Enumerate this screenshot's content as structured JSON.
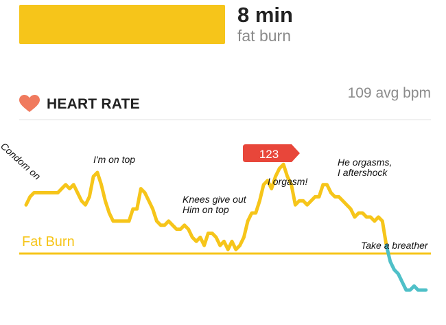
{
  "zone_summary": {
    "minutes": "8 min",
    "zone": "fat burn",
    "bar_color": "#f6c51a"
  },
  "heart_rate": {
    "icon": "heart-icon",
    "title": "HEART RATE",
    "average": "109 avg bpm",
    "peak_value": "123",
    "zone_line_label": "Fat Burn"
  },
  "colors": {
    "fat_burn": "#f6c51a",
    "below_zone": "#4fc0c8",
    "peak_badge": "#e8463a",
    "heart": "#f07a5e"
  },
  "annotations": [
    "Condom on",
    "I'm on top",
    "Knees give out",
    "Him on top",
    "I orgasm!",
    "He orgasms,",
    "I aftershock",
    "Take a breather"
  ],
  "chart_data": {
    "type": "line",
    "title": "HEART RATE",
    "xlabel": "",
    "ylabel": "",
    "grid": false,
    "zone_threshold_label": "Fat Burn",
    "peak": 123,
    "average": 109,
    "series": [
      {
        "segment": "fat burn",
        "values": [
          112,
          114,
          115,
          115,
          115,
          115,
          115,
          115,
          115,
          116,
          117,
          116,
          117,
          115,
          113,
          112,
          114,
          119,
          120,
          117,
          113,
          110,
          108,
          108,
          108,
          108,
          108,
          111,
          111,
          116,
          115,
          113,
          111,
          108,
          107,
          107,
          108,
          107,
          106,
          106,
          107,
          106,
          104,
          103,
          104,
          102,
          105,
          105,
          104,
          102,
          103,
          101,
          103,
          101,
          102,
          104,
          108,
          110,
          110,
          113,
          117,
          118,
          116,
          119,
          121,
          122,
          119,
          117,
          112,
          113,
          113,
          112,
          113,
          114,
          114,
          117,
          117,
          115,
          114,
          114,
          113,
          112,
          111,
          109,
          110,
          110,
          109,
          109,
          108,
          109,
          108,
          102
        ]
      },
      {
        "segment": "below zone",
        "values": [
          98,
          96,
          95,
          93,
          91,
          91,
          92,
          91,
          91,
          91
        ]
      }
    ]
  }
}
